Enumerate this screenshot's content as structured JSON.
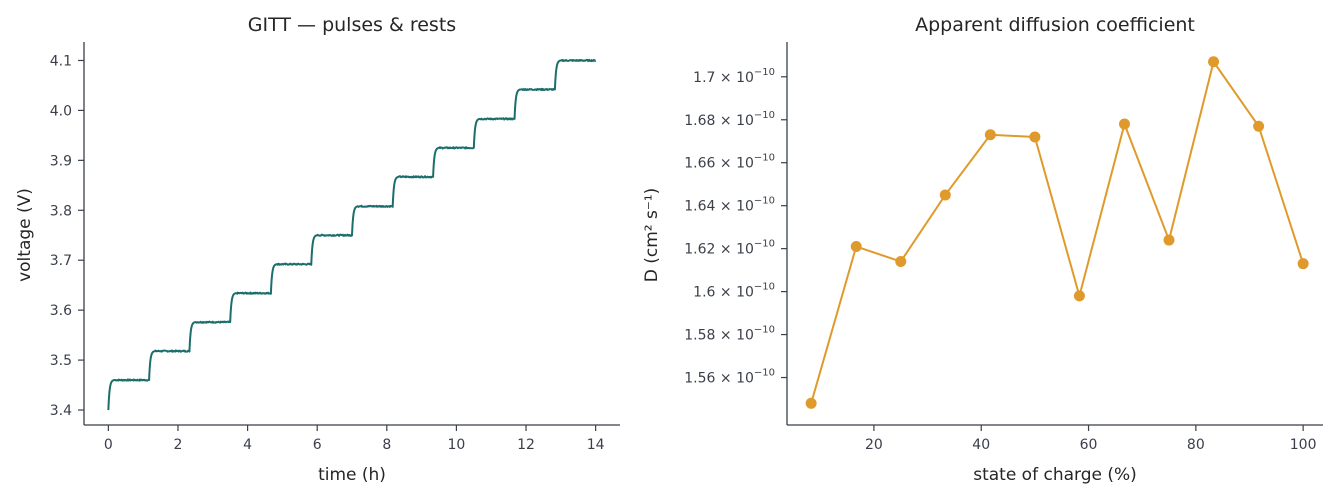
{
  "colors": {
    "gitt": "#1b6e6b",
    "diffusion": "#e09a2b",
    "axis": "#3a3f4a"
  },
  "chart_data": [
    {
      "type": "line",
      "title": "GITT — pulses & rests",
      "xlabel": "time (h)",
      "ylabel": "voltage (V)",
      "xlim": [
        -0.7,
        14.7
      ],
      "ylim": [
        3.37,
        4.137
      ],
      "xticks": [
        0,
        2,
        4,
        6,
        8,
        10,
        12,
        14
      ],
      "yticks": [
        3.4,
        3.5,
        3.6,
        3.7,
        3.8,
        3.9,
        4.0,
        4.1
      ],
      "xtick_labels": [
        "0",
        "2",
        "4",
        "6",
        "8",
        "10",
        "12",
        "14"
      ],
      "ytick_labels": [
        "3.4",
        "3.5",
        "3.6",
        "3.7",
        "3.8",
        "3.9",
        "4.0",
        "4.1"
      ],
      "grid": false,
      "series": [
        {
          "color": "#1b6e6b",
          "steps": [
            {
              "start": 0.0,
              "from": 3.4,
              "level": 3.46
            },
            {
              "start": 1.17,
              "from": 3.46,
              "level": 3.518
            },
            {
              "start": 2.33,
              "from": 3.518,
              "level": 3.576
            },
            {
              "start": 3.5,
              "from": 3.576,
              "level": 3.634
            },
            {
              "start": 4.67,
              "from": 3.634,
              "level": 3.692
            },
            {
              "start": 5.83,
              "from": 3.692,
              "level": 3.75
            },
            {
              "start": 7.0,
              "from": 3.75,
              "level": 3.808
            },
            {
              "start": 8.17,
              "from": 3.808,
              "level": 3.867
            },
            {
              "start": 9.33,
              "from": 3.867,
              "level": 3.925
            },
            {
              "start": 10.5,
              "from": 3.925,
              "level": 3.983
            },
            {
              "start": 11.67,
              "from": 3.983,
              "level": 4.042
            },
            {
              "start": 12.83,
              "from": 4.042,
              "level": 4.1
            }
          ],
          "end": 14.0,
          "pulse_duration": 0.17
        }
      ]
    },
    {
      "type": "line",
      "title": "Apparent diffusion coefficient",
      "xlabel": "state of charge (%)",
      "ylabel": "D (cm² s⁻¹)",
      "xlim": [
        3.8,
        103.7
      ],
      "ylim": [
        1.5379e-10,
        1.7162e-10
      ],
      "xticks": [
        20,
        40,
        60,
        80,
        100
      ],
      "xtick_labels": [
        "20",
        "40",
        "60",
        "80",
        "100"
      ],
      "yticks": [
        1.56e-10,
        1.58e-10,
        1.6e-10,
        1.62e-10,
        1.64e-10,
        1.66e-10,
        1.68e-10,
        1.7e-10
      ],
      "ytick_mantissas": [
        "1.56",
        "1.58",
        "1.6",
        "1.62",
        "1.64",
        "1.66",
        "1.68",
        "1.7"
      ],
      "ytick_times": "×",
      "ytick_base": "10",
      "ytick_exponent": "−10",
      "grid": false,
      "series": [
        {
          "color": "#e09a2b",
          "x": [
            8.3,
            16.7,
            25.0,
            33.3,
            41.7,
            50.0,
            58.3,
            66.7,
            75.0,
            83.3,
            91.7,
            100.0
          ],
          "y": [
            1.548e-10,
            1.621e-10,
            1.614e-10,
            1.645e-10,
            1.673e-10,
            1.672e-10,
            1.598e-10,
            1.678e-10,
            1.624e-10,
            1.707e-10,
            1.677e-10,
            1.613e-10
          ]
        }
      ]
    }
  ]
}
